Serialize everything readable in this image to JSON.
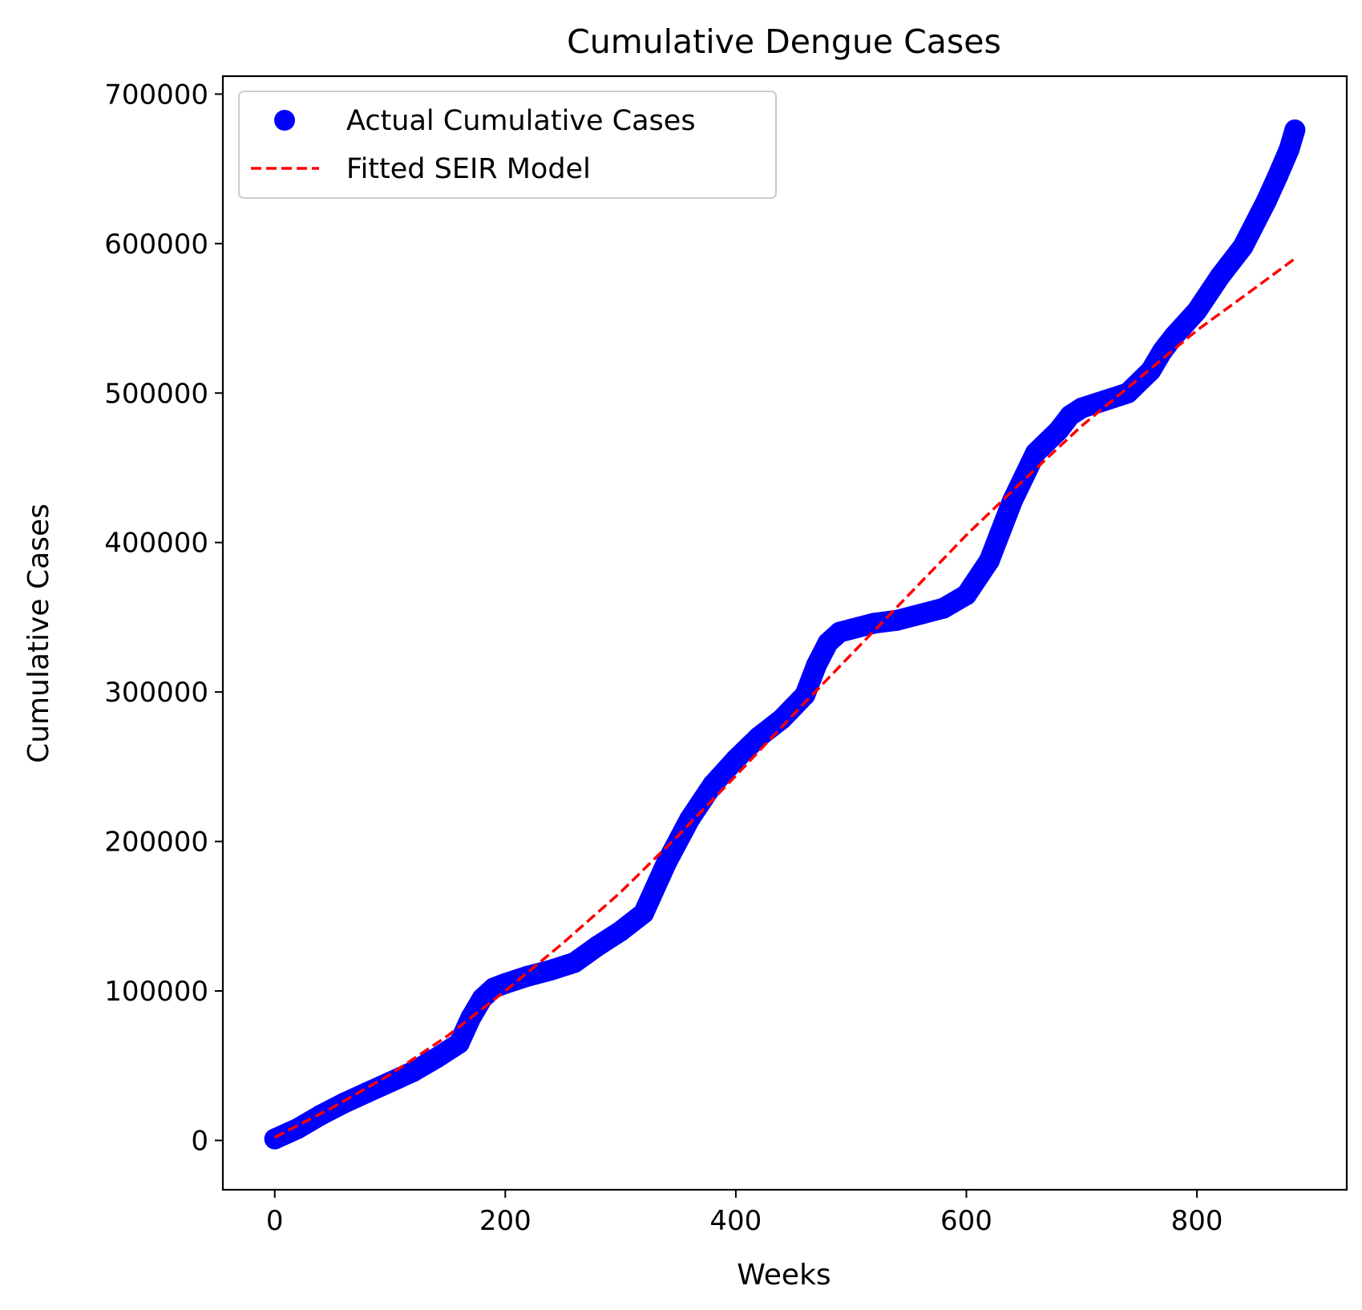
{
  "chart_data": {
    "type": "scatter",
    "title": "Cumulative Dengue Cases",
    "xlabel": "Weeks",
    "ylabel": "Cumulative Cases",
    "xlim": [
      -45,
      930
    ],
    "ylim": [
      -33000,
      712000
    ],
    "x_ticks": [
      0,
      200,
      400,
      600,
      800
    ],
    "y_ticks": [
      0,
      100000,
      200000,
      300000,
      400000,
      500000,
      600000,
      700000
    ],
    "legend_position": "upper-left",
    "grid": false,
    "colors": {
      "actual": "#0000ff",
      "fitted": "#ff0000"
    },
    "series": [
      {
        "name": "Actual Cumulative Cases",
        "kind": "scatter",
        "x": [
          0,
          20,
          40,
          60,
          80,
          100,
          120,
          140,
          160,
          170,
          180,
          190,
          200,
          220,
          240,
          260,
          280,
          300,
          320,
          340,
          360,
          380,
          400,
          420,
          440,
          460,
          470,
          480,
          490,
          500,
          520,
          540,
          560,
          580,
          600,
          620,
          640,
          660,
          680,
          690,
          700,
          720,
          740,
          760,
          770,
          780,
          800,
          820,
          840,
          860,
          870,
          880,
          885
        ],
        "y": [
          1000,
          8000,
          17000,
          25000,
          32000,
          39000,
          46000,
          55000,
          65000,
          82000,
          95000,
          102000,
          105000,
          110000,
          114000,
          119000,
          130000,
          140000,
          152000,
          186000,
          215000,
          238000,
          255000,
          270000,
          282000,
          298000,
          318000,
          333000,
          340000,
          342000,
          346000,
          348000,
          352000,
          356000,
          365000,
          388000,
          428000,
          460000,
          475000,
          485000,
          490000,
          495000,
          500000,
          515000,
          528000,
          538000,
          555000,
          578000,
          598000,
          628000,
          645000,
          663000,
          676000
        ]
      },
      {
        "name": "Fitted SEIR Model",
        "kind": "line",
        "x": [
          0,
          50,
          100,
          150,
          200,
          250,
          300,
          350,
          400,
          450,
          500,
          550,
          600,
          650,
          700,
          750,
          800,
          850,
          885
        ],
        "y": [
          2000,
          22000,
          44000,
          70000,
          100000,
          132000,
          166000,
          204000,
          244000,
          285000,
          325000,
          365000,
          405000,
          442000,
          478000,
          510000,
          542000,
          570000,
          590000
        ]
      }
    ]
  }
}
